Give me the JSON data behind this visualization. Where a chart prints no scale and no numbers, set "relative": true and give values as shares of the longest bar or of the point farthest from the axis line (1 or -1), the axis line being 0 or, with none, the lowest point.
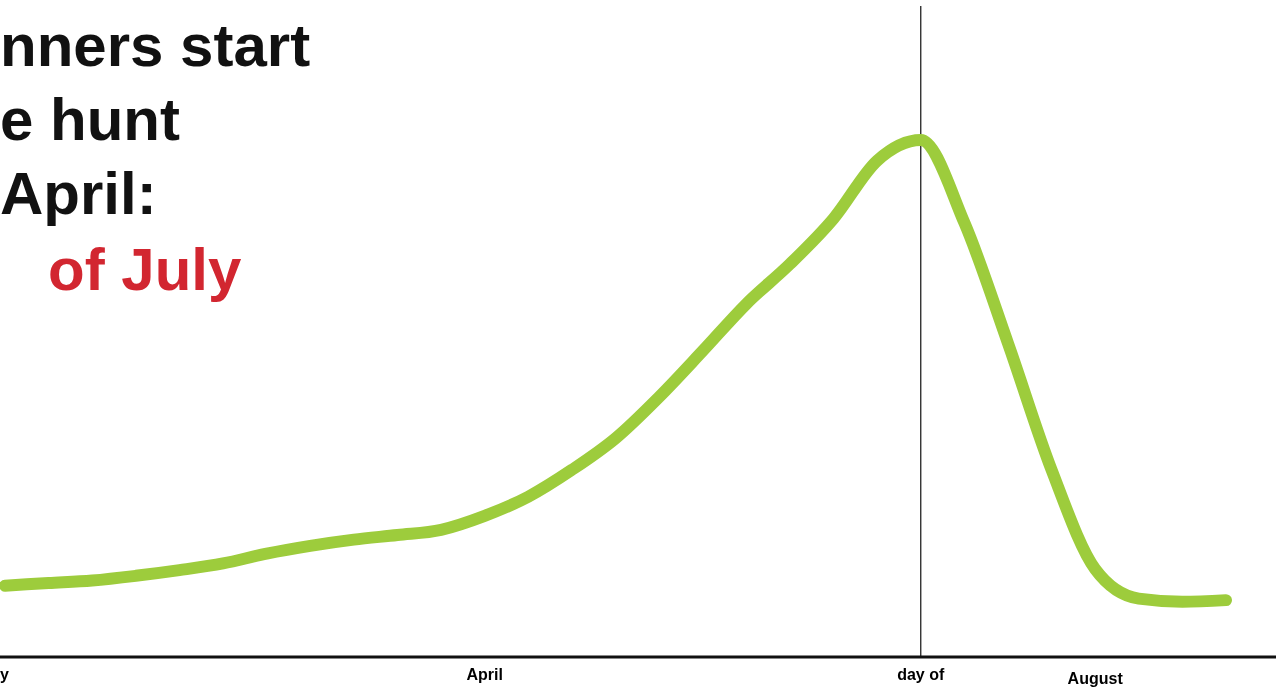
{
  "chart_data": {
    "type": "line",
    "relative": true,
    "title": "nners start\ne hunt\nApril:",
    "subtitle": "of July",
    "categories": [
      "y",
      null,
      null,
      null,
      null,
      null,
      null,
      null,
      null,
      null,
      null,
      "April",
      null,
      null,
      null,
      null,
      null,
      null,
      null,
      null,
      null,
      "day of",
      null,
      null,
      null,
      "August",
      null,
      null,
      null
    ],
    "series": [
      {
        "color": "#9dcc3c",
        "values": [
          0.138,
          0.143,
          0.148,
          0.157,
          0.168,
          0.181,
          0.2,
          0.215,
          0.227,
          0.236,
          0.246,
          0.273,
          0.31,
          0.362,
          0.423,
          0.503,
          0.592,
          0.683,
          0.76,
          0.848,
          0.96,
          1,
          0.84,
          0.607,
          0.362,
          0.17,
          0.113,
          0.107,
          0.11
        ]
      }
    ],
    "ref_lines": [
      {
        "axis": "x",
        "value": "day of",
        "color": "#222222"
      }
    ],
    "marker": "none",
    "line_style": "solid"
  }
}
